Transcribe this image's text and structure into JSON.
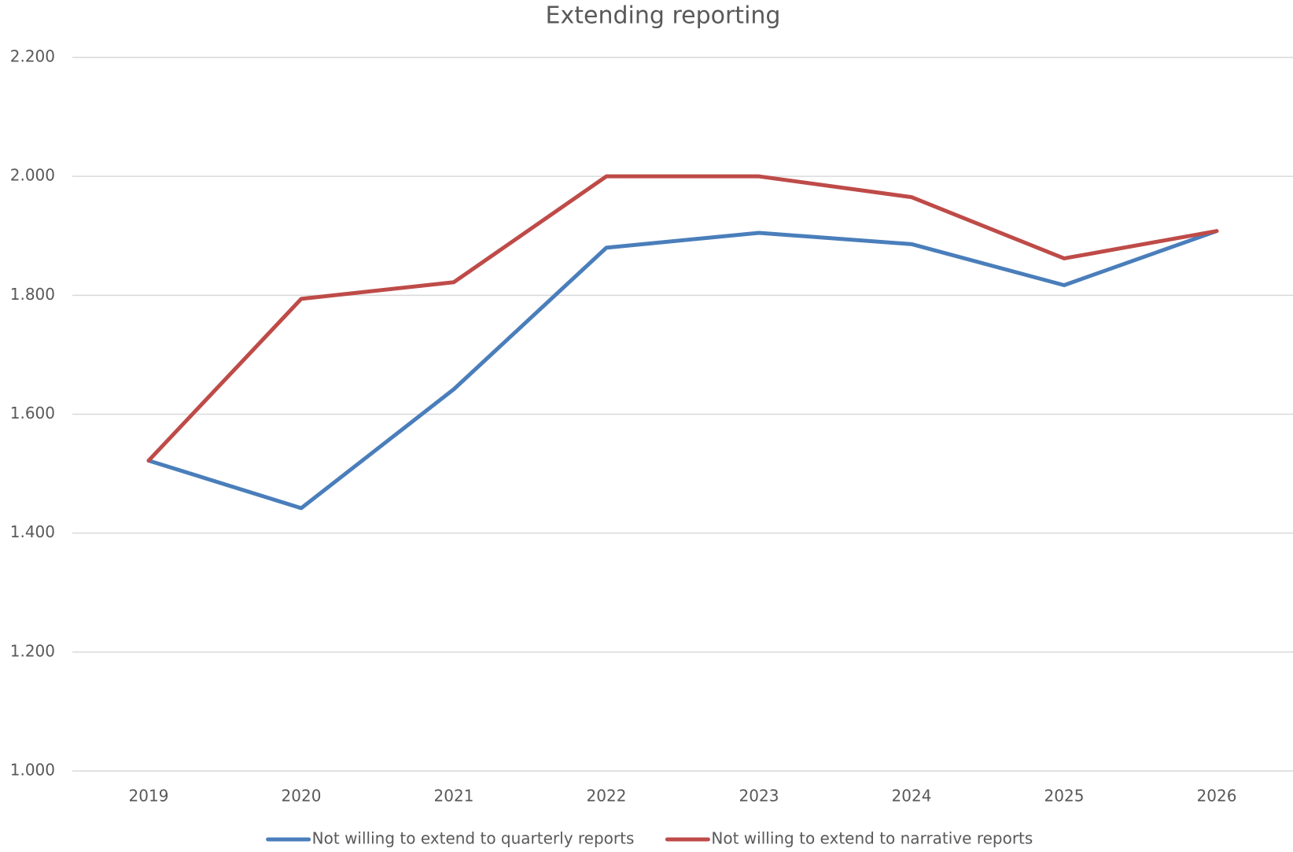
{
  "chart_data": {
    "type": "line",
    "title": "Extending reporting",
    "categories": [
      "2019",
      "2020",
      "2021",
      "2022",
      "2023",
      "2024",
      "2025",
      "2026"
    ],
    "series": [
      {
        "name": "Not willing to extend to quarterly reports",
        "color": "#4a7ebb",
        "values": [
          1522,
          1442,
          1642,
          1880,
          1905,
          1886,
          1817,
          1908
        ]
      },
      {
        "name": "Not willing to extend to narrative reports",
        "color": "#be4b48",
        "values": [
          1522,
          1794,
          1822,
          2000,
          2000,
          1965,
          1862,
          1908
        ]
      }
    ],
    "ylim": [
      1000,
      2200
    ],
    "yticks": [
      {
        "value": 1000,
        "label": "1.000"
      },
      {
        "value": 1200,
        "label": "1.200"
      },
      {
        "value": 1400,
        "label": "1.400"
      },
      {
        "value": 1600,
        "label": "1.600"
      },
      {
        "value": 1800,
        "label": "1.800"
      },
      {
        "value": 2000,
        "label": "2.000"
      },
      {
        "value": 2200,
        "label": "2.200"
      }
    ],
    "grid": true,
    "legend": "bottom"
  }
}
